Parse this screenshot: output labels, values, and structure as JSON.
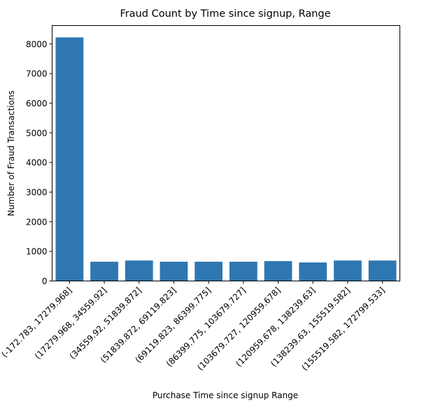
{
  "chart_data": {
    "type": "bar",
    "title": "Fraud Count by Time since signup, Range",
    "xlabel": "Purchase Time since signup Range",
    "ylabel": "Number of Fraud Transactions",
    "categories": [
      "(-172.783, 17279.968]",
      "(17279.968, 34559.92]",
      "(34559.92, 51839.872]",
      "(51839.872, 69119.823]",
      "(69119.823, 86399.775]",
      "(86399.775, 103679.727]",
      "(103679.727, 120959.678]",
      "(120959.678, 138239.63]",
      "(138239.63, 155519.582]",
      "(155519.582, 172799.533]"
    ],
    "values": [
      8220,
      650,
      690,
      650,
      650,
      650,
      670,
      625,
      690,
      690
    ],
    "ylim": [
      0,
      8620
    ],
    "yticks": [
      0,
      1000,
      2000,
      3000,
      4000,
      5000,
      6000,
      7000,
      8000
    ],
    "color": "#2f77b1",
    "grid": false,
    "legend": "none"
  }
}
